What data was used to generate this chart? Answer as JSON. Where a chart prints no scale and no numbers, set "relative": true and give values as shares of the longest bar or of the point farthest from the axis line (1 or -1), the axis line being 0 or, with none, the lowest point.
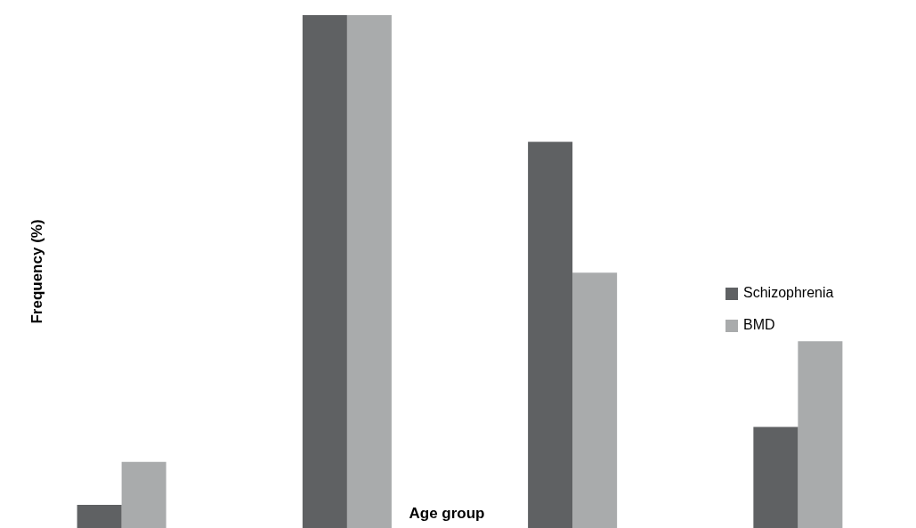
{
  "chart_data": {
    "type": "bar",
    "relative": true,
    "xlabel": "Age group",
    "ylabel": "Frequency (%)",
    "categories": [
      null,
      null,
      null,
      null
    ],
    "legend": "right",
    "grid": false,
    "series": [
      {
        "name": "Schizophrenia",
        "color": "#5f6163",
        "values": [
          0.045,
          1,
          0.753,
          0.197
        ]
      },
      {
        "name": "BMD",
        "color": "#a9abac",
        "values": [
          0.129,
          1,
          0.498,
          0.364
        ]
      }
    ]
  }
}
